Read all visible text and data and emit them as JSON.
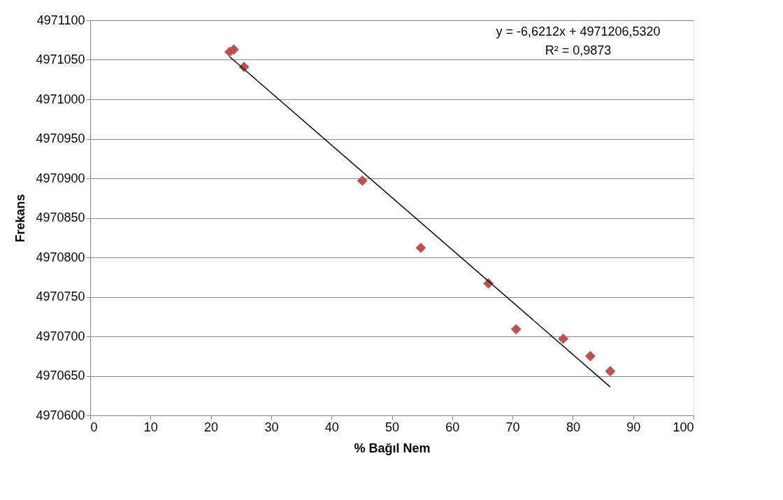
{
  "chart_data": {
    "type": "scatter",
    "xlabel": "% Bağıl Nem",
    "ylabel": "Frekans",
    "xlim": [
      0,
      100
    ],
    "xticks": [
      0,
      10,
      20,
      30,
      40,
      50,
      60,
      70,
      80,
      90,
      100
    ],
    "ylim": [
      4970600,
      4971100
    ],
    "yticks": [
      4970600,
      4970650,
      4970700,
      4970750,
      4970800,
      4970850,
      4970900,
      4970950,
      4971000,
      4971050,
      4971100
    ],
    "grid": "y",
    "marker": "diamond",
    "series": [
      {
        "color": "#c0504d",
        "x": [
          23.1,
          23.8,
          25.5,
          45.1,
          54.8,
          66.0,
          70.6,
          78.4,
          82.9,
          86.2
        ],
        "values": [
          4971060,
          4971063,
          4971041,
          4970897,
          4970812,
          4970767,
          4970709,
          4970697,
          4970675,
          4970656
        ]
      },
      {
        "type": "line",
        "color": "#000000",
        "marker": "none",
        "line_style": "solid",
        "x": [
          23.1,
          86.2
        ],
        "values": [
          4971054,
          4970636
        ]
      }
    ],
    "annotations": [
      "y = -6,6212x + 4971206,5320",
      "R² = 0,9873"
    ]
  }
}
